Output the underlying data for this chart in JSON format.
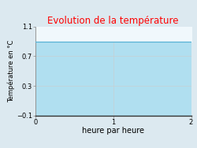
{
  "title": "Evolution de la température",
  "title_color": "#ff0000",
  "xlabel": "heure par heure",
  "ylabel": "Température en °C",
  "xlim": [
    0,
    2
  ],
  "ylim": [
    -0.1,
    1.1
  ],
  "yticks": [
    -0.1,
    0.3,
    0.7,
    1.1
  ],
  "xticks": [
    0,
    1,
    2
  ],
  "line_y": 0.9,
  "line_color": "#5ab4d6",
  "fill_color": "#b0dff0",
  "background_color": "#dce9f0",
  "plot_bg_above": "#f0f8fc",
  "title_fontsize": 8.5,
  "axis_fontsize": 6,
  "label_fontsize": 7,
  "ylabel_fontsize": 6
}
